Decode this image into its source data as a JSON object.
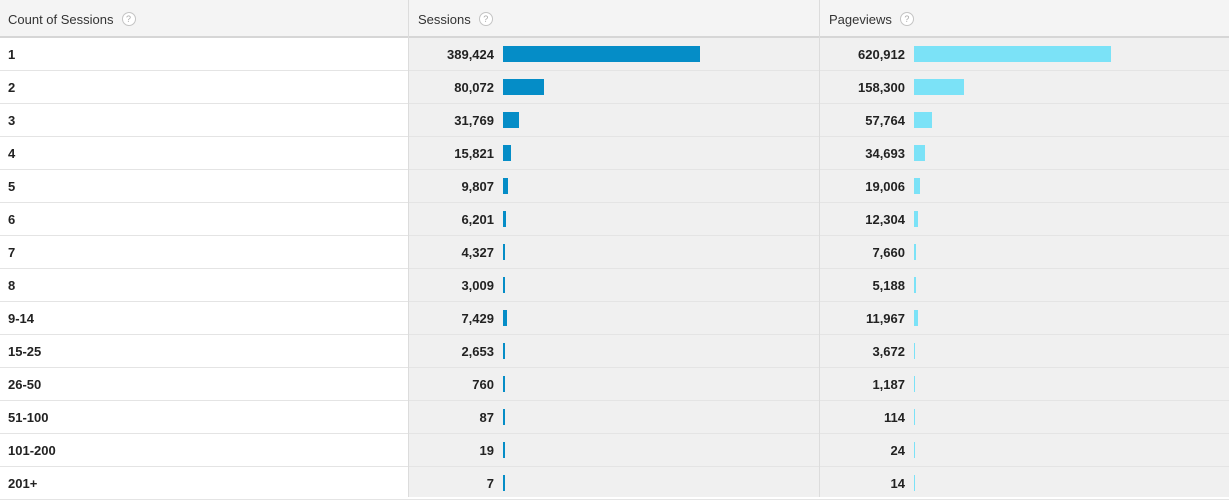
{
  "header": {
    "dimension_label": "Count of Sessions",
    "sessions_label": "Sessions",
    "pageviews_label": "Pageviews",
    "help_glyph": "?"
  },
  "colors": {
    "sessions_bar": "#058dc7",
    "pageviews_bar": "#7be2f7"
  },
  "rows": [
    {
      "label": "1",
      "sessions": "389,424",
      "sessions_value": 389424,
      "pageviews": "620,912",
      "pageviews_value": 620912
    },
    {
      "label": "2",
      "sessions": "80,072",
      "sessions_value": 80072,
      "pageviews": "158,300",
      "pageviews_value": 158300
    },
    {
      "label": "3",
      "sessions": "31,769",
      "sessions_value": 31769,
      "pageviews": "57,764",
      "pageviews_value": 57764
    },
    {
      "label": "4",
      "sessions": "15,821",
      "sessions_value": 15821,
      "pageviews": "34,693",
      "pageviews_value": 34693
    },
    {
      "label": "5",
      "sessions": "9,807",
      "sessions_value": 9807,
      "pageviews": "19,006",
      "pageviews_value": 19006
    },
    {
      "label": "6",
      "sessions": "6,201",
      "sessions_value": 6201,
      "pageviews": "12,304",
      "pageviews_value": 12304
    },
    {
      "label": "7",
      "sessions": "4,327",
      "sessions_value": 4327,
      "pageviews": "7,660",
      "pageviews_value": 7660
    },
    {
      "label": "8",
      "sessions": "3,009",
      "sessions_value": 3009,
      "pageviews": "5,188",
      "pageviews_value": 5188
    },
    {
      "label": "9-14",
      "sessions": "7,429",
      "sessions_value": 7429,
      "pageviews": "11,967",
      "pageviews_value": 11967
    },
    {
      "label": "15-25",
      "sessions": "2,653",
      "sessions_value": 2653,
      "pageviews": "3,672",
      "pageviews_value": 3672
    },
    {
      "label": "26-50",
      "sessions": "760",
      "sessions_value": 760,
      "pageviews": "1,187",
      "pageviews_value": 1187
    },
    {
      "label": "51-100",
      "sessions": "87",
      "sessions_value": 87,
      "pageviews": "114",
      "pageviews_value": 114
    },
    {
      "label": "101-200",
      "sessions": "19",
      "sessions_value": 19,
      "pageviews": "24",
      "pageviews_value": 24
    },
    {
      "label": "201+",
      "sessions": "7",
      "sessions_value": 7,
      "pageviews": "14",
      "pageviews_value": 14
    }
  ]
}
